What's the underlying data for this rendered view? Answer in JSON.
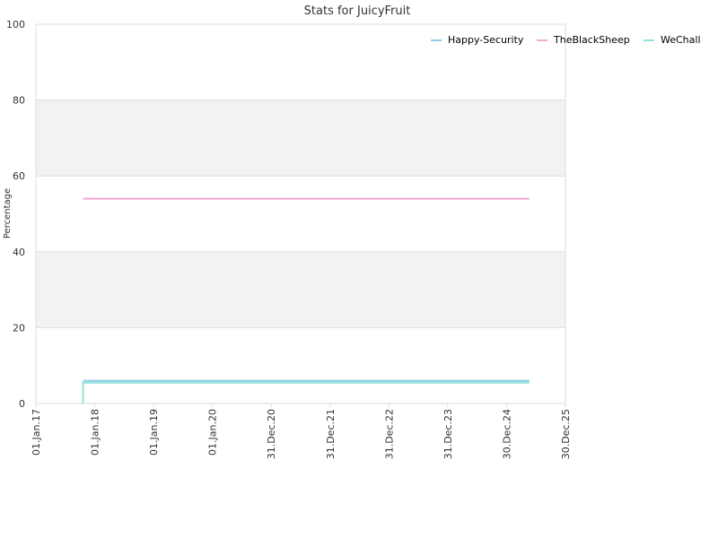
{
  "chart_data": {
    "type": "line",
    "title": "Stats for JuicyFruit",
    "ylabel": "Percentage",
    "xlabel": "",
    "ylim": [
      0,
      100
    ],
    "yticks": [
      "0",
      "20",
      "40",
      "60",
      "80",
      "100"
    ],
    "xlim": [
      "2017-01-01",
      "2025-12-30"
    ],
    "xticks": [
      {
        "date": "2017-01-01",
        "label": "01.Jan.17"
      },
      {
        "date": "2018-01-01",
        "label": "01.Jan.18"
      },
      {
        "date": "2019-01-01",
        "label": "01.Jan.19"
      },
      {
        "date": "2020-01-01",
        "label": "01.Jan.20"
      },
      {
        "date": "2020-12-31",
        "label": "31.Dec.20"
      },
      {
        "date": "2021-12-31",
        "label": "31.Dec.21"
      },
      {
        "date": "2022-12-31",
        "label": "31.Dec.22"
      },
      {
        "date": "2023-12-31",
        "label": "31.Dec.23"
      },
      {
        "date": "2024-12-30",
        "label": "30.Dec.24"
      },
      {
        "date": "2025-12-30",
        "label": "30.Dec.25"
      }
    ],
    "band_fill": "#f2f2f2",
    "series": [
      {
        "name": "Happy-Security",
        "color": "#8ecbe6",
        "points": [
          [
            "2017-10-21",
            6
          ],
          [
            "2025-05-20",
            6
          ]
        ]
      },
      {
        "name": "TheBlackSheep",
        "color": "#f4a6d0",
        "points": [
          [
            "2017-10-21",
            54
          ],
          [
            "2025-05-20",
            54
          ]
        ]
      },
      {
        "name": "WeChall",
        "color": "#8fe3d9",
        "points": [
          [
            "2017-10-21",
            0
          ],
          [
            "2017-10-21",
            5.5
          ],
          [
            "2025-05-20",
            5.5
          ]
        ]
      }
    ],
    "legend_position": "top-right"
  }
}
